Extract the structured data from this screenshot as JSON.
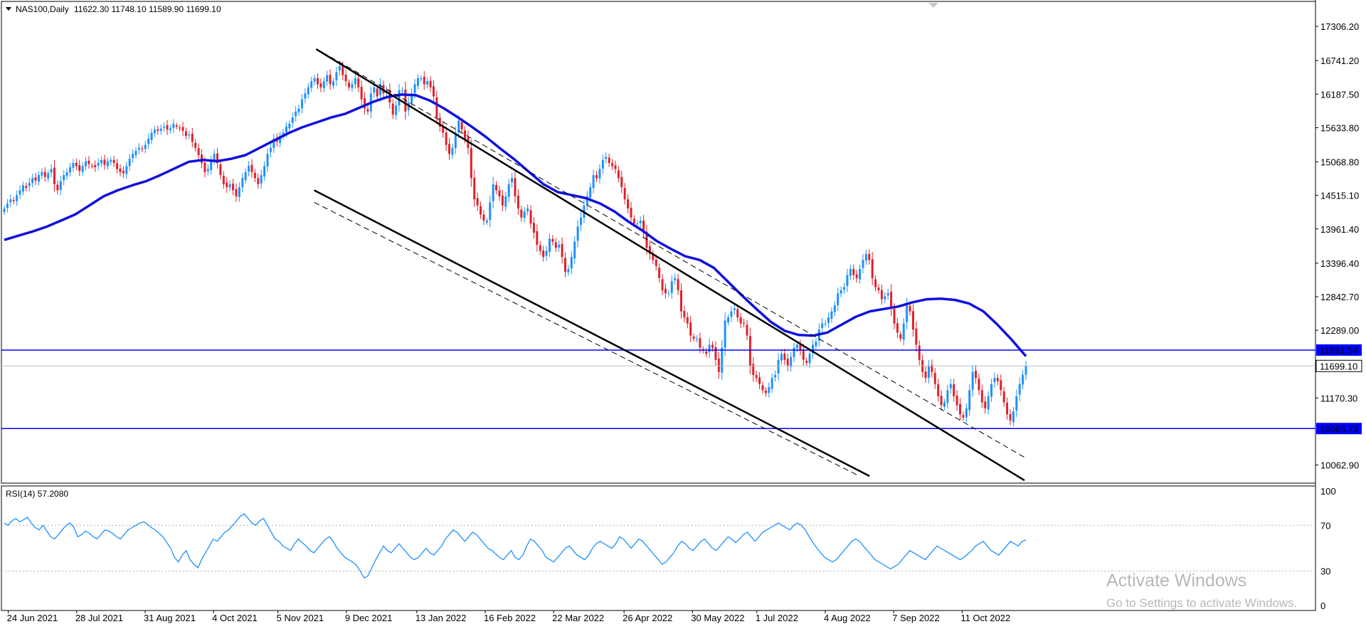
{
  "main_header": {
    "symbol": "NAS100,Daily",
    "ohlc": "11622.30 11748.10 11589.90 11699.10"
  },
  "rsi_header": "RSI(14) 57.2080",
  "watermark": {
    "line1": "Activate Windows",
    "line2": "Go to Settings to activate Windows."
  },
  "colors": {
    "bull": "#1e90ff",
    "bear": "#e0202a",
    "ma": "#1010dd",
    "hline": "#0000ff",
    "trendline": "#000000",
    "rsi": "#1e90ff",
    "badge_blue": "#0000ff",
    "price_line": "#c0c0c0"
  },
  "chart_data": [
    {
      "type": "candlestick",
      "panel": "price",
      "title": "NAS100,Daily",
      "ohlc_last": {
        "open": 11622.3,
        "high": 11748.1,
        "low": 11589.9,
        "close": 11699.1
      },
      "y_ticks": [
        17306.2,
        16741.2,
        16187.5,
        15633.8,
        15068.8,
        14515.1,
        13961.4,
        13396.4,
        12842.7,
        12289.0,
        11170.3,
        10062.9
      ],
      "ylim": [
        9870,
        17530
      ],
      "x_ticks": [
        "24 Jun 2021",
        "28 Jul 2021",
        "31 Aug 2021",
        "4 Oct 2021",
        "5 Nov 2021",
        "9 Dec 2021",
        "13 Jan 2022",
        "16 Feb 2022",
        "22 Mar 2022",
        "26 Apr 2022",
        "30 May 2022",
        "1 Jul 2022",
        "4 Aug 2022",
        "7 Sep 2022",
        "11 Oct 2022"
      ],
      "x_range": [
        "2021-06-22",
        "2022-11-11"
      ],
      "closes": [
        14300,
        14380,
        14450,
        14420,
        14520,
        14600,
        14680,
        14640,
        14720,
        14800,
        14760,
        14850,
        14900,
        14820,
        14880,
        14950,
        14700,
        14600,
        14750,
        14850,
        14900,
        14980,
        15050,
        15000,
        14920,
        15000,
        15080,
        15030,
        15000,
        14980,
        15050,
        15100,
        15020,
        15080,
        15100,
        15050,
        14950,
        14900,
        14880,
        15000,
        15120,
        15200,
        15250,
        15300,
        15280,
        15350,
        15450,
        15550,
        15600,
        15580,
        15620,
        15650,
        15600,
        15620,
        15700,
        15650,
        15620,
        15580,
        15500,
        15520,
        15400,
        15300,
        15180,
        15050,
        14900,
        14950,
        15100,
        15200,
        15050,
        14850,
        14700,
        14650,
        14700,
        14600,
        14500,
        14650,
        14800,
        14900,
        15000,
        14900,
        14800,
        14700,
        14850,
        15000,
        15200,
        15300,
        15450,
        15400,
        15500,
        15550,
        15650,
        15700,
        15800,
        15900,
        15950,
        16100,
        16200,
        16300,
        16400,
        16450,
        16350,
        16300,
        16400,
        16500,
        16350,
        16400,
        16550,
        16650,
        16500,
        16400,
        16300,
        16350,
        16450,
        16300,
        16100,
        15950,
        15900,
        16200,
        16300,
        16150,
        16350,
        16200,
        16250,
        16050,
        15850,
        16000,
        16250,
        16250,
        15900,
        16050,
        16200,
        16350,
        16450,
        16450,
        16350,
        16400,
        16300,
        16150,
        15800,
        15650,
        15550,
        15350,
        15200,
        15300,
        15550,
        15750,
        15600,
        15450,
        15300,
        14800,
        14450,
        14350,
        14200,
        14100,
        14100,
        14400,
        14700,
        14600,
        14500,
        14350,
        14500,
        14700,
        14800,
        14500,
        14300,
        14150,
        14250,
        14300,
        14050,
        13900,
        13700,
        13600,
        13500,
        13600,
        13800,
        13750,
        13650,
        13700,
        13500,
        13250,
        13300,
        13500,
        13750,
        14000,
        14150,
        14350,
        14500,
        14650,
        14850,
        14800,
        14950,
        15100,
        15150,
        15050,
        15000,
        14950,
        14800,
        14650,
        14450,
        14300,
        14150,
        14050,
        14050,
        14100,
        13900,
        13650,
        13550,
        13450,
        13350,
        13150,
        12950,
        12900,
        12900,
        13100,
        13150,
        12950,
        12600,
        12500,
        12400,
        12200,
        12150,
        12150,
        12000,
        11950,
        11900,
        12050,
        12000,
        11800,
        11600,
        12000,
        12450,
        12500,
        12600,
        12650,
        12500,
        12400,
        12400,
        12200,
        11700,
        11550,
        11500,
        11400,
        11300,
        11250,
        11350,
        11500,
        11550,
        11800,
        11900,
        11800,
        11700,
        11850,
        12000,
        12050,
        11950,
        11800,
        11750,
        11900,
        12050,
        12100,
        12300,
        12400,
        12400,
        12500,
        12600,
        12700,
        12900,
        12950,
        13000,
        13200,
        13300,
        13200,
        13150,
        13300,
        13450,
        13550,
        13450,
        13150,
        13000,
        12950,
        12800,
        12850,
        12900,
        12650,
        12400,
        12250,
        12150,
        12400,
        12700,
        12600,
        12300,
        12050,
        11800,
        11600,
        11500,
        11700,
        11600,
        11400,
        11200,
        11050,
        11100,
        11300,
        11400,
        11200,
        11050,
        10900,
        10850,
        11000,
        11300,
        11600,
        11500,
        11300,
        11100,
        11000,
        11200,
        11400,
        11500,
        11450,
        11300,
        11100,
        10900,
        10800,
        10950,
        11200,
        11400,
        11550,
        11699.1
      ],
      "moving_average": [
        13780,
        13850,
        13920,
        14000,
        14100,
        14200,
        14350,
        14500,
        14600,
        14680,
        14750,
        14850,
        14960,
        15070,
        15100,
        15080,
        15120,
        15180,
        15300,
        15420,
        15540,
        15640,
        15720,
        15800,
        15860,
        15960,
        16060,
        16140,
        16180,
        16170,
        16080,
        15950,
        15800,
        15640,
        15470,
        15280,
        15100,
        14900,
        14700,
        14570,
        14520,
        14470,
        14380,
        14250,
        14080,
        13930,
        13760,
        13630,
        13510,
        13450,
        13320,
        13090,
        12860,
        12640,
        12430,
        12280,
        12210,
        12200,
        12250,
        12380,
        12510,
        12600,
        12640,
        12680,
        12750,
        12800,
        12810,
        12790,
        12730,
        12600,
        12380,
        12130,
        11860
      ],
      "horizontal_lines": [
        {
          "value": 11961.54,
          "label": "11961.54"
        },
        {
          "value": 10665.73,
          "label": "10665.73"
        }
      ],
      "current_price": {
        "value": 11699.1,
        "label": "11699.10"
      },
      "trend_channel": [
        {
          "style": "solid",
          "from": [
            "2021-11-24",
            16930
          ],
          "to": [
            "2022-11-11",
            9810
          ]
        },
        {
          "style": "dashed",
          "from": [
            "2021-11-27",
            16880
          ],
          "to": [
            "2022-11-11",
            10190
          ]
        },
        {
          "style": "solid",
          "from": [
            "2021-11-23",
            14600
          ],
          "to": [
            "2022-08-26",
            9880
          ]
        },
        {
          "style": "dashed",
          "from": [
            "2021-11-23",
            14400
          ],
          "to": [
            "2022-08-21",
            9880
          ]
        }
      ]
    },
    {
      "type": "line",
      "panel": "indicator",
      "title": "RSI(14) 57.2080",
      "y_ticks": [
        100,
        70,
        30,
        0
      ],
      "ylim": [
        0,
        100
      ],
      "levels": [
        70,
        30
      ],
      "values": [
        72,
        70,
        74,
        76,
        73,
        75,
        77,
        72,
        68,
        66,
        70,
        65,
        60,
        58,
        62,
        66,
        70,
        72,
        68,
        60,
        62,
        65,
        63,
        60,
        58,
        62,
        66,
        65,
        63,
        60,
        58,
        62,
        66,
        68,
        70,
        72,
        73,
        71,
        68,
        66,
        63,
        60,
        55,
        50,
        42,
        38,
        44,
        48,
        40,
        36,
        33,
        40,
        46,
        52,
        58,
        56,
        60,
        64,
        66,
        70,
        74,
        78,
        80,
        76,
        72,
        70,
        74,
        76,
        70,
        64,
        58,
        56,
        52,
        50,
        48,
        54,
        58,
        55,
        52,
        48,
        46,
        50,
        54,
        58,
        60,
        56,
        50,
        46,
        42,
        40,
        38,
        35,
        30,
        24,
        26,
        33,
        40,
        46,
        52,
        48,
        46,
        50,
        54,
        50,
        46,
        42,
        40,
        42,
        46,
        50,
        46,
        44,
        48,
        52,
        58,
        62,
        66,
        64,
        60,
        56,
        60,
        64,
        62,
        58,
        54,
        50,
        48,
        45,
        42,
        40,
        44,
        48,
        42,
        40,
        44,
        52,
        58,
        56,
        52,
        48,
        42,
        40,
        38,
        42,
        46,
        50,
        52,
        48,
        44,
        42,
        40,
        44,
        50,
        54,
        56,
        54,
        52,
        50,
        54,
        60,
        58,
        54,
        50,
        54,
        58,
        56,
        52,
        48,
        44,
        40,
        36,
        38,
        42,
        46,
        52,
        56,
        54,
        50,
        48,
        52,
        56,
        58,
        54,
        50,
        48,
        52,
        56,
        60,
        58,
        55,
        58,
        62,
        64,
        60,
        56,
        60,
        64,
        66,
        68,
        70,
        72,
        70,
        68,
        66,
        70,
        72,
        70,
        66,
        60,
        55,
        50,
        46,
        42,
        40,
        38,
        40,
        44,
        48,
        52,
        56,
        58,
        56,
        52,
        48,
        44,
        40,
        38,
        36,
        34,
        32,
        34,
        36,
        40,
        44,
        48,
        46,
        44,
        42,
        40,
        44,
        48,
        52,
        50,
        48,
        46,
        44,
        42,
        40,
        42,
        45,
        48,
        52,
        54,
        56,
        52,
        48,
        46,
        44,
        48,
        52,
        56,
        54,
        52,
        56,
        57.2
      ]
    }
  ]
}
